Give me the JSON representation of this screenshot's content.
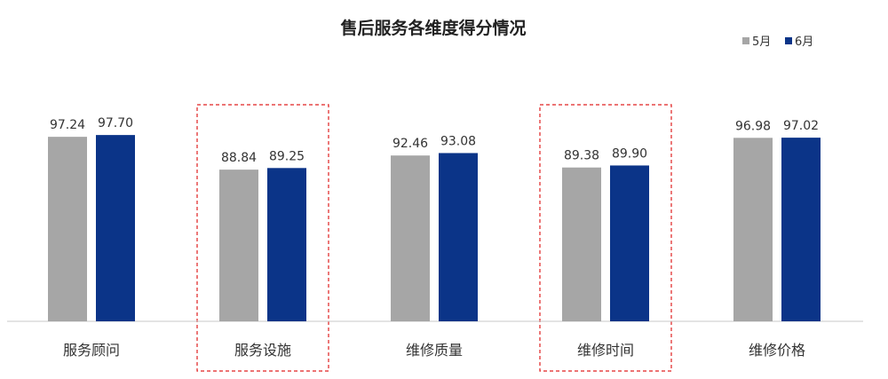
{
  "colors": {
    "series_may": "#a6a6a6",
    "series_june": "#0b3488",
    "highlight": "#e02020",
    "axis": "#c8c8c8",
    "text": "#333333"
  },
  "chart_data": {
    "type": "bar",
    "title": "售后服务各维度得分情况",
    "categories": [
      "服务顾问",
      "服务设施",
      "维修质量",
      "维修时间",
      "维修价格"
    ],
    "series": [
      {
        "name": "5月",
        "values": [
          97.24,
          88.84,
          92.46,
          89.38,
          96.98
        ]
      },
      {
        "name": "6月",
        "values": [
          97.7,
          89.25,
          93.08,
          89.9,
          97.02
        ]
      }
    ],
    "value_labels": [
      [
        "97.24",
        "88.84",
        "92.46",
        "89.38",
        "96.98"
      ],
      [
        "97.70",
        "89.25",
        "93.08",
        "89.90",
        "97.02"
      ]
    ],
    "highlighted_categories": [
      "服务设施",
      "维修时间"
    ],
    "ylim": [
      50,
      100
    ],
    "grid": false,
    "legend_position": "top-right"
  }
}
